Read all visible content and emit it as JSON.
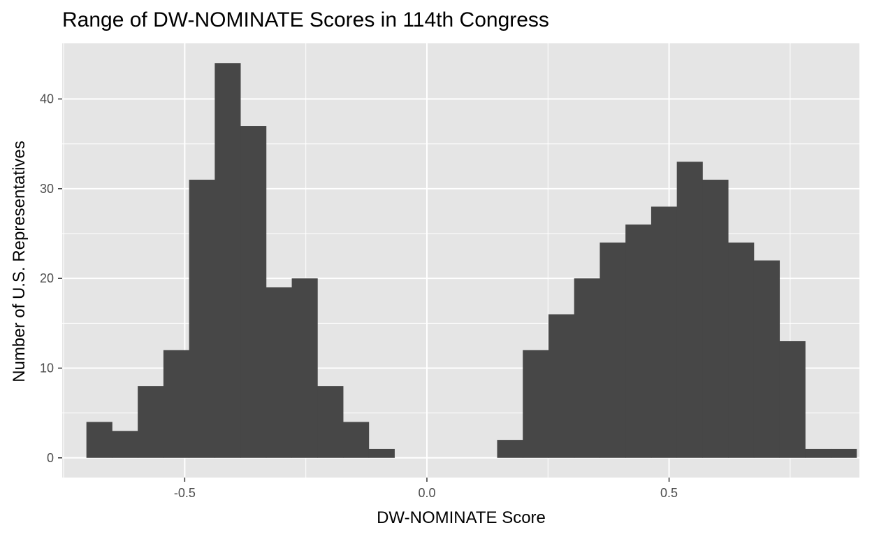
{
  "chart_data": {
    "type": "bar",
    "title": "Range of DW-NOMINATE Scores in 114th Congress",
    "xlabel": "DW-NOMINATE Score",
    "ylabel": "Number of U.S. Representatives",
    "xlim": [
      -0.753,
      0.893
    ],
    "ylim": [
      -2.2,
      46.2
    ],
    "x_ticks": [
      -0.5,
      0.0,
      0.5
    ],
    "x_tick_labels": [
      "-0.5",
      "0.0",
      "0.5"
    ],
    "y_ticks": [
      0,
      10,
      20,
      30,
      40
    ],
    "y_tick_labels": [
      "0",
      "10",
      "20",
      "30",
      "40"
    ],
    "grid": true,
    "colors": {
      "panel": "#e5e5e5",
      "grid": "#ffffff",
      "bar": "#474747",
      "tick": "#333333"
    },
    "bins": [
      {
        "x0": -0.703,
        "x1": -0.65,
        "count": 4
      },
      {
        "x0": -0.65,
        "x1": -0.597,
        "count": 3
      },
      {
        "x0": -0.597,
        "x1": -0.544,
        "count": 8
      },
      {
        "x0": -0.544,
        "x1": -0.491,
        "count": 12
      },
      {
        "x0": -0.491,
        "x1": -0.438,
        "count": 31
      },
      {
        "x0": -0.438,
        "x1": -0.385,
        "count": 44
      },
      {
        "x0": -0.385,
        "x1": -0.332,
        "count": 37
      },
      {
        "x0": -0.332,
        "x1": -0.279,
        "count": 19
      },
      {
        "x0": -0.279,
        "x1": -0.226,
        "count": 20
      },
      {
        "x0": -0.226,
        "x1": -0.173,
        "count": 8
      },
      {
        "x0": -0.173,
        "x1": -0.12,
        "count": 4
      },
      {
        "x0": -0.12,
        "x1": -0.067,
        "count": 1
      },
      {
        "x0": -0.067,
        "x1": -0.014,
        "count": 0
      },
      {
        "x0": -0.014,
        "x1": 0.039,
        "count": 0
      },
      {
        "x0": 0.039,
        "x1": 0.092,
        "count": 0
      },
      {
        "x0": 0.092,
        "x1": 0.145,
        "count": 0
      },
      {
        "x0": 0.145,
        "x1": 0.198,
        "count": 2
      },
      {
        "x0": 0.198,
        "x1": 0.251,
        "count": 12
      },
      {
        "x0": 0.251,
        "x1": 0.304,
        "count": 16
      },
      {
        "x0": 0.304,
        "x1": 0.357,
        "count": 20
      },
      {
        "x0": 0.357,
        "x1": 0.41,
        "count": 24
      },
      {
        "x0": 0.41,
        "x1": 0.463,
        "count": 26
      },
      {
        "x0": 0.463,
        "x1": 0.516,
        "count": 28
      },
      {
        "x0": 0.516,
        "x1": 0.569,
        "count": 33
      },
      {
        "x0": 0.569,
        "x1": 0.622,
        "count": 31
      },
      {
        "x0": 0.622,
        "x1": 0.675,
        "count": 24
      },
      {
        "x0": 0.675,
        "x1": 0.728,
        "count": 22
      },
      {
        "x0": 0.728,
        "x1": 0.781,
        "count": 13
      },
      {
        "x0": 0.781,
        "x1": 0.834,
        "count": 1
      },
      {
        "x0": 0.834,
        "x1": 0.887,
        "count": 1
      }
    ]
  }
}
